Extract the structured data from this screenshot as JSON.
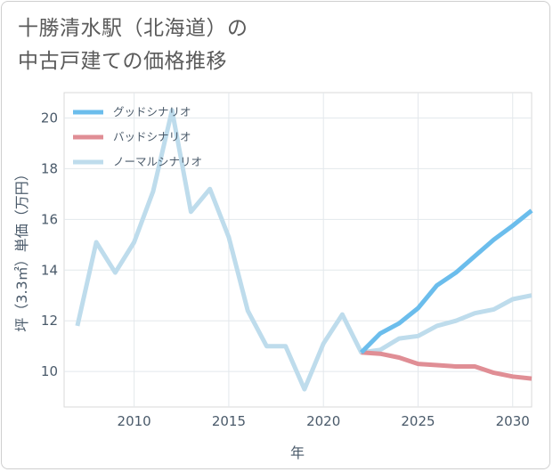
{
  "title": "十勝清水駅（北海道）の\n中古戸建ての価格推移",
  "chart_data": {
    "type": "line",
    "title": "十勝清水駅（北海道）の中古戸建ての価格推移",
    "xlabel": "年",
    "ylabel": "坪（3.3㎡）単価（万円）",
    "xlim": [
      2006.3,
      2031
    ],
    "ylim": [
      8.6,
      21
    ],
    "x_ticks": [
      2010,
      2015,
      2020,
      2025,
      2030
    ],
    "y_ticks": [
      10,
      12,
      14,
      16,
      18,
      20
    ],
    "grid": true,
    "legend_position": "top-left",
    "series": [
      {
        "name": "グッドシナリオ",
        "color": "#6bbdec",
        "x": [
          2022,
          2023,
          2024,
          2025,
          2026,
          2027,
          2028,
          2029,
          2030,
          2031
        ],
        "values": [
          10.75,
          11.5,
          11.9,
          12.5,
          13.4,
          13.9,
          14.55,
          15.2,
          15.75,
          16.35
        ]
      },
      {
        "name": "バッドシナリオ",
        "color": "#e08e95",
        "x": [
          2022,
          2023,
          2024,
          2025,
          2026,
          2027,
          2028,
          2029,
          2030,
          2031
        ],
        "values": [
          10.75,
          10.7,
          10.55,
          10.3,
          10.25,
          10.2,
          10.2,
          9.95,
          9.8,
          9.72
        ]
      },
      {
        "name": "ノーマルシナリオ",
        "color": "#bedcec",
        "x": [
          2007,
          2008,
          2009,
          2010,
          2011,
          2012,
          2013,
          2014,
          2015,
          2016,
          2017,
          2018,
          2019,
          2020,
          2021,
          2022,
          2023,
          2024,
          2025,
          2026,
          2027,
          2028,
          2029,
          2030,
          2031
        ],
        "values": [
          11.8,
          15.1,
          13.9,
          15.1,
          17.1,
          20.3,
          16.3,
          17.2,
          15.3,
          12.4,
          11.0,
          11.0,
          9.3,
          11.1,
          12.25,
          10.75,
          10.85,
          11.3,
          11.4,
          11.8,
          12.0,
          12.3,
          12.45,
          12.85,
          13.0
        ]
      }
    ]
  }
}
